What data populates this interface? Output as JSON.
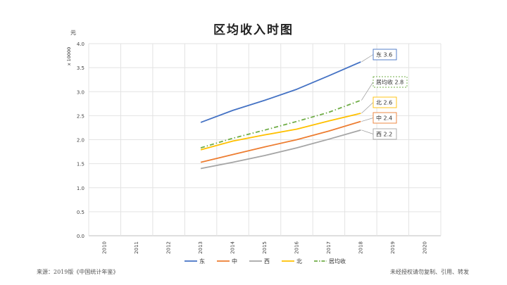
{
  "header": {
    "title": "区均收入时图"
  },
  "footer": {
    "source": "来源：2019版《中国统计年鉴》",
    "notice": "未经授权请勿复制、引用、转发"
  },
  "chart_data": {
    "type": "line",
    "title": "区均收入时图",
    "ylabel": "元",
    "yscale_label": "x 10000",
    "ylim": [
      0,
      4.0
    ],
    "yticks": [
      0.0,
      0.5,
      1.0,
      1.5,
      2.0,
      2.5,
      3.0,
      3.5,
      4.0
    ],
    "categories": [
      "2010",
      "2011",
      "2012",
      "2013",
      "2014",
      "2015",
      "2016",
      "2017",
      "2018",
      "2019",
      "2020"
    ],
    "grid": true,
    "legend_position": "bottom",
    "series": [
      {
        "name": "东",
        "color": "#4472C4",
        "dash": "solid",
        "x": [
          "2013",
          "2014",
          "2015",
          "2016",
          "2017",
          "2018"
        ],
        "values": [
          2.36,
          2.61,
          2.82,
          3.05,
          3.33,
          3.62
        ],
        "end_label": "东 3.6"
      },
      {
        "name": "中",
        "color": "#ED7D31",
        "dash": "solid",
        "x": [
          "2013",
          "2014",
          "2015",
          "2016",
          "2017",
          "2018"
        ],
        "values": [
          1.53,
          1.69,
          1.85,
          2.0,
          2.18,
          2.38
        ],
        "end_label": "中 2.4"
      },
      {
        "name": "西",
        "color": "#A5A5A5",
        "dash": "solid",
        "x": [
          "2013",
          "2014",
          "2015",
          "2016",
          "2017",
          "2018"
        ],
        "values": [
          1.4,
          1.53,
          1.67,
          1.83,
          2.01,
          2.2
        ],
        "end_label": "西 2.2"
      },
      {
        "name": "北",
        "color": "#FFC000",
        "dash": "solid",
        "x": [
          "2013",
          "2014",
          "2015",
          "2016",
          "2017",
          "2018"
        ],
        "values": [
          1.79,
          1.97,
          2.1,
          2.22,
          2.39,
          2.55
        ],
        "end_label": "北 2.6"
      },
      {
        "name": "居均收",
        "color": "#70AD47",
        "dash": "dashdot",
        "x": [
          "2013",
          "2014",
          "2015",
          "2016",
          "2017",
          "2018"
        ],
        "values": [
          1.83,
          2.03,
          2.2,
          2.38,
          2.57,
          2.82
        ],
        "end_label": "居均收 2.8"
      }
    ]
  }
}
